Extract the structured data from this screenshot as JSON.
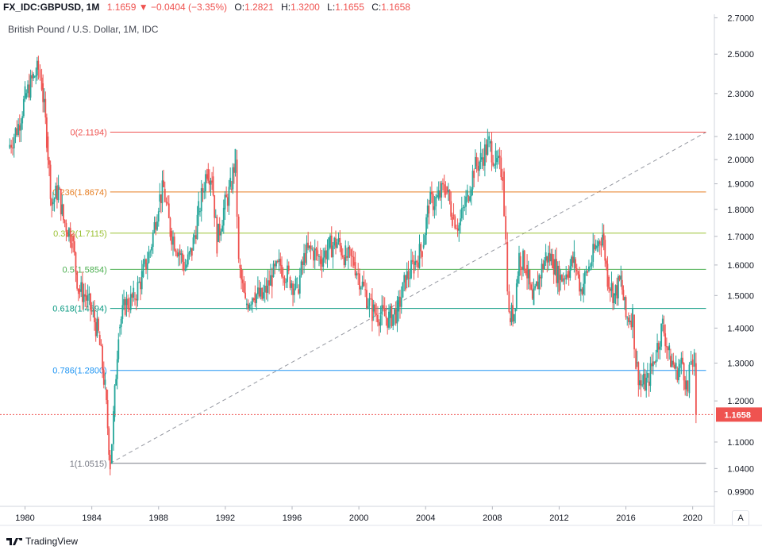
{
  "header": {
    "symbol": "FX_IDC:GBPUSD, 1M",
    "last": "1.1659",
    "change": "−0.0404 (−3.35%)",
    "open_label": "O:",
    "open": "1.2821",
    "high_label": "H:",
    "high": "1.3200",
    "low_label": "L:",
    "low": "1.1655",
    "close_label": "C:",
    "close": "1.1658"
  },
  "legend_title": "British Pound / U.S. Dollar, 1M, IDC",
  "brand": "TradingView",
  "auto_label": "A",
  "colors": {
    "up": "#26a69a",
    "down": "#ef5350",
    "price_tag": "#ef5350"
  },
  "chart_data": {
    "type": "candlestick",
    "title": "British Pound / U.S. Dollar, 1M, IDC",
    "x_ticks": [
      "1980",
      "1984",
      "1988",
      "1992",
      "1996",
      "2000",
      "2004",
      "2008",
      "2012",
      "2016",
      "2020"
    ],
    "y_ticks": [
      "0.9900",
      "1.0400",
      "1.1000",
      "1.1658",
      "1.2000",
      "1.3000",
      "1.4000",
      "1.5000",
      "1.6000",
      "1.7000",
      "1.8000",
      "1.9000",
      "2.0000",
      "2.1000",
      "2.3000",
      "2.5000",
      "2.7000"
    ],
    "y_scale": "log",
    "ylim": [
      0.96,
      2.72
    ],
    "xlim": [
      1978.5,
      2021.3
    ],
    "last_price": "1.1658",
    "series_path": [
      [
        1979.0,
        2.05
      ],
      [
        1979.6,
        2.15
      ],
      [
        1980.0,
        2.28
      ],
      [
        1980.5,
        2.38
      ],
      [
        1980.8,
        2.42
      ],
      [
        1981.0,
        2.35
      ],
      [
        1981.3,
        2.1
      ],
      [
        1981.6,
        1.82
      ],
      [
        1982.0,
        1.88
      ],
      [
        1982.3,
        1.76
      ],
      [
        1982.8,
        1.7
      ],
      [
        1983.2,
        1.52
      ],
      [
        1983.6,
        1.5
      ],
      [
        1984.0,
        1.45
      ],
      [
        1984.4,
        1.38
      ],
      [
        1984.8,
        1.23
      ],
      [
        1985.1,
        1.0515
      ],
      [
        1985.3,
        1.16
      ],
      [
        1985.6,
        1.4
      ],
      [
        1986.0,
        1.47
      ],
      [
        1986.5,
        1.49
      ],
      [
        1987.0,
        1.56
      ],
      [
        1987.5,
        1.65
      ],
      [
        1988.0,
        1.83
      ],
      [
        1988.3,
        1.88
      ],
      [
        1988.7,
        1.72
      ],
      [
        1989.2,
        1.65
      ],
      [
        1989.6,
        1.59
      ],
      [
        1990.0,
        1.65
      ],
      [
        1990.4,
        1.79
      ],
      [
        1990.9,
        1.96
      ],
      [
        1991.2,
        1.93
      ],
      [
        1991.5,
        1.68
      ],
      [
        1991.9,
        1.8
      ],
      [
        1992.3,
        1.88
      ],
      [
        1992.6,
        2.0
      ],
      [
        1992.8,
        1.6
      ],
      [
        1993.2,
        1.47
      ],
      [
        1993.7,
        1.51
      ],
      [
        1994.2,
        1.49
      ],
      [
        1994.8,
        1.56
      ],
      [
        1995.3,
        1.6
      ],
      [
        1995.8,
        1.56
      ],
      [
        1996.3,
        1.52
      ],
      [
        1996.8,
        1.64
      ],
      [
        1997.2,
        1.65
      ],
      [
        1997.7,
        1.62
      ],
      [
        1998.2,
        1.66
      ],
      [
        1998.7,
        1.68
      ],
      [
        1999.2,
        1.63
      ],
      [
        1999.7,
        1.61
      ],
      [
        2000.3,
        1.52
      ],
      [
        2000.8,
        1.45
      ],
      [
        2001.3,
        1.44
      ],
      [
        2001.8,
        1.43
      ],
      [
        2002.3,
        1.45
      ],
      [
        2002.8,
        1.55
      ],
      [
        2003.3,
        1.6
      ],
      [
        2003.8,
        1.66
      ],
      [
        2004.2,
        1.82
      ],
      [
        2004.7,
        1.84
      ],
      [
        2005.2,
        1.89
      ],
      [
        2005.6,
        1.78
      ],
      [
        2006.0,
        1.74
      ],
      [
        2006.5,
        1.85
      ],
      [
        2006.9,
        1.96
      ],
      [
        2007.3,
        2.0
      ],
      [
        2007.8,
        2.07
      ],
      [
        2008.2,
        1.99
      ],
      [
        2008.6,
        1.95
      ],
      [
        2008.8,
        1.68
      ],
      [
        2009.0,
        1.43
      ],
      [
        2009.3,
        1.45
      ],
      [
        2009.6,
        1.63
      ],
      [
        2010.0,
        1.6
      ],
      [
        2010.4,
        1.47
      ],
      [
        2010.8,
        1.56
      ],
      [
        2011.2,
        1.63
      ],
      [
        2011.6,
        1.62
      ],
      [
        2012.0,
        1.55
      ],
      [
        2012.5,
        1.58
      ],
      [
        2012.9,
        1.62
      ],
      [
        2013.3,
        1.52
      ],
      [
        2013.7,
        1.58
      ],
      [
        2014.2,
        1.66
      ],
      [
        2014.6,
        1.71
      ],
      [
        2014.9,
        1.56
      ],
      [
        2015.3,
        1.5
      ],
      [
        2015.7,
        1.55
      ],
      [
        2016.0,
        1.43
      ],
      [
        2016.4,
        1.44
      ],
      [
        2016.6,
        1.3
      ],
      [
        2016.9,
        1.24
      ],
      [
        2017.3,
        1.25
      ],
      [
        2017.8,
        1.33
      ],
      [
        2018.2,
        1.41
      ],
      [
        2018.6,
        1.32
      ],
      [
        2019.0,
        1.28
      ],
      [
        2019.4,
        1.3
      ],
      [
        2019.7,
        1.22
      ],
      [
        2019.9,
        1.31
      ],
      [
        2020.1,
        1.3
      ],
      [
        2020.2,
        1.1658
      ]
    ],
    "fibonacci": {
      "levels": [
        {
          "label": "0(2.1194)",
          "value": 2.1194,
          "color": "#ef5350",
          "fill": "#f5d0d0"
        },
        {
          "label": "0.236(1.8674)",
          "value": 1.8674,
          "color": "#e67e22",
          "fill": "#ebf5cf"
        },
        {
          "label": "0.382(1.7115)",
          "value": 1.7115,
          "color": "#9bc134",
          "fill": "#d7f0cf"
        },
        {
          "label": "0.5(1.5854)",
          "value": 1.5854,
          "color": "#4caf50",
          "fill": "#d3f0e3"
        },
        {
          "label": "0.618(1.4594)",
          "value": 1.4594,
          "color": "#089981",
          "fill": "#d3e7f3"
        },
        {
          "label": "0.786(1.2800)",
          "value": 1.28,
          "color": "#2196f3",
          "fill": "#e3e3e3"
        },
        {
          "label": "1(1.0515)",
          "value": 1.0515,
          "color": "#787b86",
          "fill": "#d3d1f5"
        }
      ],
      "x_start": 1985.1,
      "x_end": 2020.8,
      "trend_from": [
        1985.1,
        1.0515
      ],
      "trend_to": [
        2020.8,
        2.1194
      ]
    }
  }
}
